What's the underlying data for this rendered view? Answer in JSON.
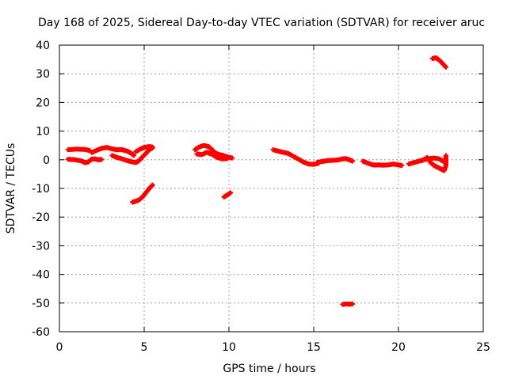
{
  "chart_data": {
    "type": "scatter",
    "title": "Day 168 of 2025, Sidereal Day-to-day VTEC variation (SDTVAR) for receiver aruc",
    "xlabel": "GPS time / hours",
    "ylabel": "SDTVAR / TECUs",
    "xlim": [
      0,
      25
    ],
    "ylim": [
      -60,
      40
    ],
    "xticks": [
      0,
      5,
      10,
      15,
      20,
      25
    ],
    "yticks": [
      -60,
      -50,
      -40,
      -30,
      -20,
      -10,
      0,
      10,
      20,
      30,
      40
    ],
    "grid": true,
    "marker_color": "#ff0000",
    "series": [
      {
        "name": "track-a-upper",
        "values": [
          [
            0.5,
            3.5
          ],
          [
            1.0,
            3.7
          ],
          [
            1.5,
            3.6
          ],
          [
            1.8,
            3.2
          ]
        ]
      },
      {
        "name": "track-a-lower",
        "values": [
          [
            0.5,
            0.2
          ],
          [
            0.9,
            0.0
          ],
          [
            1.3,
            -0.4
          ],
          [
            1.5,
            -1.0
          ],
          [
            1.7,
            -0.8
          ],
          [
            1.9,
            0.2
          ],
          [
            2.1,
            0.3
          ],
          [
            2.3,
            0.0
          ],
          [
            2.5,
            0.1
          ]
        ]
      },
      {
        "name": "track-b",
        "values": [
          [
            1.9,
            2.5
          ],
          [
            2.2,
            3.3
          ],
          [
            2.5,
            4.0
          ],
          [
            2.8,
            4.3
          ],
          [
            3.1,
            3.8
          ],
          [
            3.4,
            3.5
          ],
          [
            3.7,
            3.5
          ],
          [
            4.0,
            3.0
          ],
          [
            4.2,
            2.4
          ],
          [
            4.4,
            1.5
          ]
        ]
      },
      {
        "name": "track-c",
        "values": [
          [
            3.1,
            1.5
          ],
          [
            3.4,
            0.8
          ],
          [
            3.7,
            0.3
          ],
          [
            4.0,
            -0.3
          ],
          [
            4.2,
            -0.6
          ],
          [
            4.5,
            -1.0
          ],
          [
            4.7,
            -0.3
          ],
          [
            4.9,
            1.0
          ],
          [
            5.1,
            2.2
          ],
          [
            5.3,
            3.5
          ],
          [
            5.5,
            4.2
          ]
        ]
      },
      {
        "name": "track-d",
        "values": [
          [
            4.5,
            2.8
          ],
          [
            4.8,
            3.8
          ],
          [
            5.0,
            4.3
          ],
          [
            5.3,
            4.6
          ],
          [
            5.5,
            4.4
          ]
        ]
      },
      {
        "name": "track-e",
        "values": [
          [
            4.3,
            -14.8
          ],
          [
            4.5,
            -14.5
          ],
          [
            4.7,
            -14.0
          ],
          [
            4.9,
            -13.0
          ],
          [
            5.1,
            -11.5
          ],
          [
            5.3,
            -10.0
          ],
          [
            5.5,
            -8.8
          ]
        ]
      },
      {
        "name": "track-f",
        "values": [
          [
            8.0,
            3.5
          ],
          [
            8.2,
            4.3
          ],
          [
            8.5,
            5.0
          ],
          [
            8.8,
            4.6
          ],
          [
            9.0,
            3.5
          ],
          [
            9.2,
            2.4
          ],
          [
            9.4,
            1.8
          ],
          [
            9.6,
            1.6
          ],
          [
            9.8,
            1.2
          ],
          [
            10.0,
            0.8
          ],
          [
            10.2,
            0.6
          ]
        ]
      },
      {
        "name": "track-g",
        "values": [
          [
            8.1,
            2.0
          ],
          [
            8.4,
            1.8
          ],
          [
            8.7,
            2.6
          ],
          [
            9.0,
            1.9
          ],
          [
            9.3,
            0.8
          ],
          [
            9.6,
            0.3
          ],
          [
            9.9,
            0.4
          ]
        ]
      },
      {
        "name": "track-h",
        "values": [
          [
            9.7,
            -13.0
          ],
          [
            9.9,
            -12.3
          ],
          [
            10.1,
            -11.5
          ]
        ]
      },
      {
        "name": "track-i",
        "values": [
          [
            12.6,
            3.5
          ],
          [
            12.9,
            3.0
          ],
          [
            13.2,
            2.6
          ],
          [
            13.5,
            2.2
          ],
          [
            13.8,
            1.2
          ],
          [
            14.1,
            0.2
          ],
          [
            14.4,
            -0.8
          ],
          [
            14.7,
            -1.5
          ],
          [
            15.0,
            -1.6
          ],
          [
            15.3,
            -1.2
          ]
        ]
      },
      {
        "name": "track-j",
        "values": [
          [
            15.2,
            -0.9
          ],
          [
            15.5,
            -0.6
          ],
          [
            15.8,
            -0.3
          ],
          [
            16.1,
            -0.2
          ],
          [
            16.4,
            -0.1
          ],
          [
            16.7,
            0.3
          ],
          [
            16.9,
            0.4
          ],
          [
            17.1,
            0.0
          ],
          [
            17.3,
            -0.5
          ]
        ]
      },
      {
        "name": "track-k",
        "values": [
          [
            16.7,
            -50.5
          ],
          [
            16.9,
            -50.3
          ],
          [
            17.1,
            -50.4
          ],
          [
            17.3,
            -50.3
          ]
        ]
      },
      {
        "name": "track-l",
        "values": [
          [
            17.9,
            -0.5
          ],
          [
            18.2,
            -1.2
          ],
          [
            18.5,
            -1.8
          ],
          [
            18.8,
            -1.8
          ],
          [
            19.1,
            -1.9
          ],
          [
            19.4,
            -1.8
          ],
          [
            19.7,
            -1.5
          ],
          [
            20.0,
            -1.8
          ],
          [
            20.2,
            -2.0
          ]
        ]
      },
      {
        "name": "track-m",
        "values": [
          [
            20.6,
            -1.5
          ],
          [
            20.9,
            -1.0
          ],
          [
            21.2,
            -0.5
          ],
          [
            21.5,
            0.0
          ],
          [
            21.8,
            0.4
          ],
          [
            22.1,
            0.6
          ],
          [
            22.4,
            0.3
          ],
          [
            22.6,
            -0.4
          ],
          [
            22.8,
            -0.9
          ]
        ]
      },
      {
        "name": "track-n",
        "values": [
          [
            21.4,
            -0.3
          ],
          [
            21.7,
            0.8
          ],
          [
            21.9,
            -1.0
          ],
          [
            22.1,
            -2.0
          ],
          [
            22.3,
            -2.6
          ],
          [
            22.5,
            -3.2
          ],
          [
            22.7,
            -3.8
          ],
          [
            22.8,
            -2.0
          ],
          [
            22.8,
            0.5
          ],
          [
            22.8,
            1.5
          ]
        ]
      },
      {
        "name": "track-o",
        "values": [
          [
            22.0,
            35.3
          ],
          [
            22.2,
            35.6
          ],
          [
            22.4,
            34.8
          ],
          [
            22.6,
            33.6
          ],
          [
            22.8,
            32.3
          ]
        ]
      }
    ]
  }
}
